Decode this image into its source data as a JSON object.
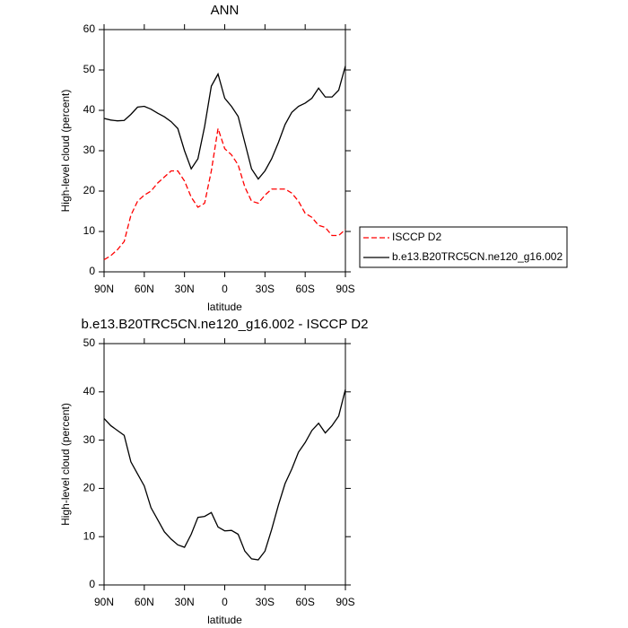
{
  "chart_data": [
    {
      "type": "line",
      "title": "ANN",
      "xlabel": "latitude",
      "ylabel": "High-level cloud (percent)",
      "x": [
        90,
        85,
        80,
        75,
        70,
        65,
        60,
        55,
        50,
        45,
        40,
        35,
        30,
        25,
        20,
        15,
        10,
        5,
        0,
        -5,
        -10,
        -15,
        -20,
        -25,
        -30,
        -35,
        -40,
        -45,
        -50,
        -55,
        -60,
        -65,
        -70,
        -75,
        -80,
        -85,
        -90
      ],
      "series": [
        {
          "name": "ISCCP D2",
          "color": "#ff0000",
          "dashed": true,
          "values": [
            3,
            4,
            5.5,
            7.5,
            14,
            17.5,
            19,
            20,
            22,
            23.5,
            25,
            25,
            22.5,
            18.5,
            16,
            17,
            25,
            35.5,
            30.5,
            29,
            26.5,
            21,
            17.5,
            17,
            19,
            20.5,
            20.5,
            20.5,
            19.5,
            17.5,
            14.5,
            13.5,
            11.5,
            11,
            9,
            9,
            10.5
          ]
        },
        {
          "name": "b.e13.B20TRC5CN.ne120_g16.002",
          "color": "#000000",
          "dashed": false,
          "values": [
            38,
            37.6,
            37.4,
            37.5,
            39,
            40.8,
            41,
            40.3,
            39.3,
            38.4,
            37.2,
            35.5,
            30,
            25.5,
            28,
            36,
            46,
            49,
            43,
            41,
            38.5,
            32,
            25.5,
            23,
            25,
            28,
            32,
            36.5,
            39.5,
            41,
            41.8,
            43,
            45.5,
            43.3,
            43.3,
            45,
            51
          ]
        }
      ],
      "xlim": [
        90,
        -90
      ],
      "xticks": [
        {
          "value": 90,
          "label": "90N"
        },
        {
          "value": 60,
          "label": "60N"
        },
        {
          "value": 30,
          "label": "30N"
        },
        0,
        {
          "value": -30,
          "label": "30S"
        },
        {
          "value": -60,
          "label": "60S"
        },
        {
          "value": -90,
          "label": "90S"
        }
      ],
      "ylim": [
        0,
        60
      ],
      "yticks": [
        0,
        10,
        20,
        30,
        40,
        50,
        60
      ],
      "legend": "right"
    },
    {
      "type": "line",
      "title": "b.e13.B20TRC5CN.ne120_g16.002 - ISCCP D2",
      "xlabel": "latitude",
      "ylabel": "High-level cloud (percent)",
      "x": [
        90,
        85,
        80,
        75,
        70,
        65,
        60,
        55,
        50,
        45,
        40,
        35,
        30,
        25,
        20,
        15,
        10,
        5,
        0,
        -5,
        -10,
        -15,
        -20,
        -25,
        -30,
        -35,
        -40,
        -45,
        -50,
        -55,
        -60,
        -65,
        -70,
        -75,
        -80,
        -85,
        -90
      ],
      "series": [
        {
          "color": "#000000",
          "dashed": false,
          "values": [
            34.5,
            33,
            32,
            31,
            25.5,
            23,
            20.5,
            16,
            13.5,
            11,
            9.5,
            8.3,
            7.8,
            10.5,
            14,
            14.2,
            15,
            12,
            11.2,
            11.3,
            10.5,
            7,
            5.4,
            5.2,
            7,
            11.5,
            16.5,
            21,
            24,
            27.5,
            29.5,
            32,
            33.5,
            31.5,
            33,
            35,
            40.5
          ]
        }
      ],
      "xlim": [
        90,
        -90
      ],
      "xticks": [
        {
          "value": 90,
          "label": "90N"
        },
        {
          "value": 60,
          "label": "60N"
        },
        {
          "value": 30,
          "label": "30N"
        },
        0,
        {
          "value": -30,
          "label": "30S"
        },
        {
          "value": -60,
          "label": "60S"
        },
        {
          "value": -90,
          "label": "90S"
        }
      ],
      "ylim": [
        0,
        50
      ],
      "yticks": [
        0,
        10,
        20,
        30,
        40,
        50
      ]
    }
  ]
}
